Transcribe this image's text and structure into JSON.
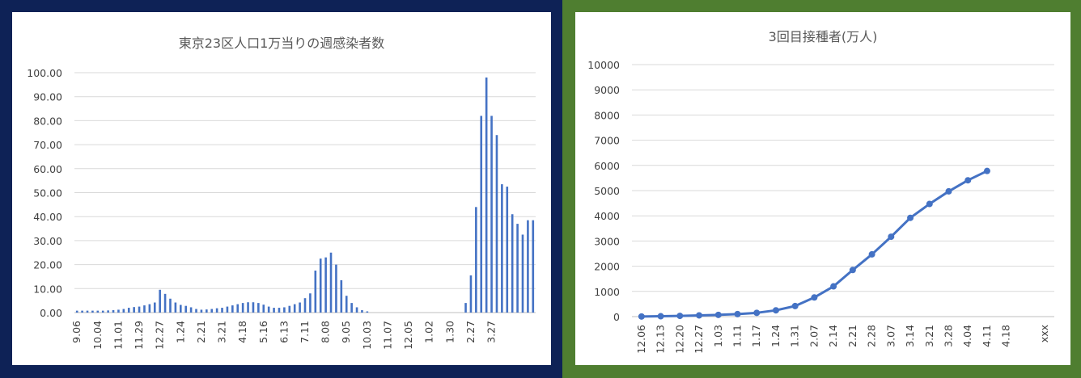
{
  "chart_data": [
    {
      "type": "bar",
      "title": "東京23区人口1万当りの週感染者数",
      "ylim": [
        0,
        100
      ],
      "yticks": [
        "0.00",
        "10.00",
        "20.00",
        "30.00",
        "40.00",
        "50.00",
        "60.00",
        "70.00",
        "80.00",
        "90.00",
        "100.00"
      ],
      "xtick_labels": [
        "9.06",
        "10.04",
        "11.01",
        "11.29",
        "12.27",
        "1.24",
        "2.21",
        "3.21",
        "4.18",
        "5.16",
        "6.13",
        "7.11",
        "8.08",
        "9.05",
        "10.03",
        "11.07",
        "12.05",
        "1.02",
        "1.30",
        "2.27",
        "3.27"
      ],
      "values": [
        0.8,
        0.8,
        0.8,
        0.8,
        0.8,
        0.8,
        0.9,
        1.0,
        1.2,
        1.5,
        2.0,
        2.3,
        2.5,
        3.0,
        3.5,
        4.2,
        9.5,
        7.8,
        5.8,
        4.2,
        3.2,
        2.8,
        2.2,
        1.5,
        1.2,
        1.3,
        1.5,
        1.8,
        2.0,
        2.5,
        3.0,
        3.5,
        4.0,
        4.3,
        4.3,
        4.0,
        3.3,
        2.5,
        2.0,
        2.0,
        2.2,
        2.8,
        3.5,
        4.2,
        6.0,
        8.0,
        17.5,
        22.5,
        23.0,
        25.0,
        20.0,
        13.5,
        7.0,
        4.0,
        2.2,
        1.0,
        0.5,
        0,
        0,
        0,
        0,
        0,
        0,
        0,
        0,
        0,
        0,
        0,
        0,
        0,
        0,
        0,
        0,
        0,
        0,
        4.0,
        15.5,
        44.0,
        82.0,
        98.0,
        82.0,
        74.0,
        53.5,
        52.5,
        41.0,
        37.0,
        32.5,
        38.5,
        38.5
      ],
      "color": "#4472c4"
    },
    {
      "type": "line",
      "title": "3回目接種者(万人)",
      "ylim": [
        0,
        10000
      ],
      "yticks": [
        "0",
        "1000",
        "2000",
        "3000",
        "4000",
        "5000",
        "6000",
        "7000",
        "8000",
        "9000",
        "10000"
      ],
      "categories": [
        "12.06",
        "12.13",
        "12.20",
        "12.27",
        "1.03",
        "1.11",
        "1.17",
        "1.24",
        "1.31",
        "2.07",
        "2.14",
        "2.21",
        "2.28",
        "3.07",
        "3.14",
        "3.21",
        "3.28",
        "4.04",
        "4.11",
        "4.18",
        "",
        "xxx"
      ],
      "values": [
        5,
        15,
        30,
        50,
        70,
        100,
        150,
        250,
        420,
        760,
        1200,
        1850,
        2470,
        3170,
        3920,
        4470,
        4970,
        5410,
        5780,
        null,
        null,
        null
      ],
      "color": "#4472c4"
    }
  ]
}
